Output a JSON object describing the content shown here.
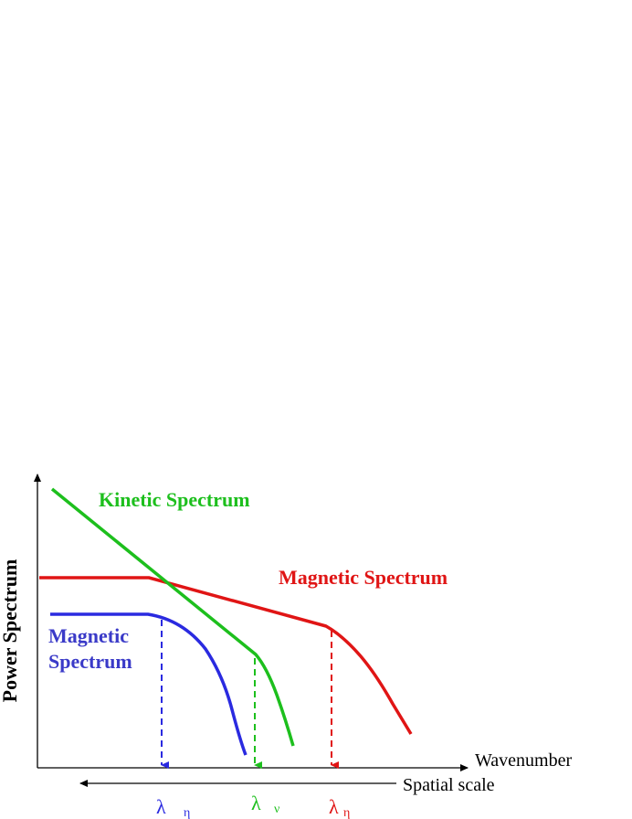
{
  "axes": {
    "y_label": "Power Spectrum",
    "x_label": "Wavenumber",
    "scale_label": "Spatial scale"
  },
  "curves": {
    "kinetic": {
      "label": "Kinetic Spectrum",
      "color": "#1dbf1d"
    },
    "magnetic_red": {
      "label": "Magnetic Spectrum",
      "color": "#e01515"
    },
    "magnetic_blue": {
      "label_line1": "Magnetic",
      "label_line2": "Spectrum",
      "color": "#2a2ae0",
      "label_color": "#3a3ac8"
    }
  },
  "markers": [
    {
      "symbol": "λ",
      "subscript": "η",
      "color": "#2a2ae0"
    },
    {
      "symbol": "λ",
      "subscript": "ν",
      "color": "#1dbf1d"
    },
    {
      "symbol": "λ",
      "subscript": "η",
      "color": "#e01515"
    }
  ]
}
